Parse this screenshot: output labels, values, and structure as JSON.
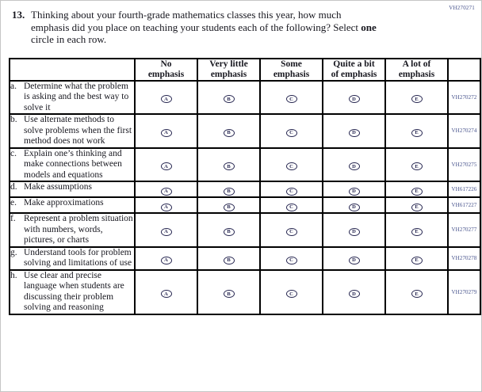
{
  "form_code": "VH270271",
  "question": {
    "number": "13.",
    "line1": "Thinking about your fourth-grade mathematics classes this year, how much",
    "line2_before": "emphasis did you place on teaching your students each of the following? Select ",
    "line2_bold": "one",
    "line3": "circle in each row."
  },
  "table": {
    "columns": [
      "No\nemphasis",
      "Very little\nemphasis",
      "Some\nemphasis",
      "Quite a bit\nof emphasis",
      "A lot of\nemphasis"
    ],
    "option_letters": [
      "A",
      "B",
      "C",
      "D",
      "E"
    ],
    "rows": [
      {
        "prefix": "a.",
        "label": "Determine what the problem is asking and the best way to solve it",
        "code": "VH270272"
      },
      {
        "prefix": "b.",
        "label": "Use alternate methods to solve problems when the first method does not work",
        "code": "VH270274"
      },
      {
        "prefix": "c.",
        "label": "Explain one’s thinking and make connections between models and equations",
        "code": "VH270275"
      },
      {
        "prefix": "d.",
        "label": "Make assumptions",
        "code": "VH617226"
      },
      {
        "prefix": "e.",
        "label": "Make approximations",
        "code": "VH617227"
      },
      {
        "prefix": "f.",
        "label": "Represent a problem situation with numbers, words, pictures, or charts",
        "code": "VH270277"
      },
      {
        "prefix": "g.",
        "label": "Understand tools for problem solving and limitations of use",
        "code": "VH270278"
      },
      {
        "prefix": "h.",
        "label": "Use clear and precise language when students are discussing their problem solving and reasoning",
        "code": "VH270279"
      }
    ]
  },
  "colors": {
    "text": "#17171f",
    "table_border": "#000000",
    "code_blue": "#44508a",
    "oval_outline": "#262650"
  }
}
